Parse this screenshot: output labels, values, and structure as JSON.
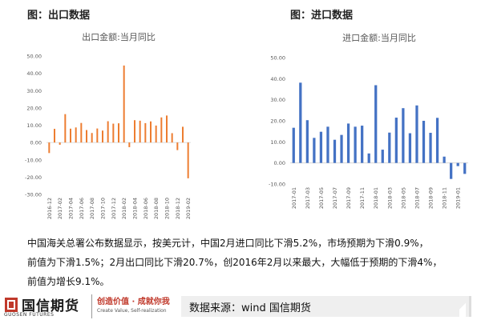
{
  "panels": {
    "left_title": "图：出口数据",
    "right_title": "图：进口数据"
  },
  "chart_data": [
    {
      "type": "bar",
      "title": "出口金额:当月同比",
      "color": "#ED7D31",
      "ylim": [
        -30,
        50
      ],
      "yticks": [
        "50.00",
        "40.00",
        "30.00",
        "20.00",
        "10.00",
        "0.00",
        "-10.00",
        "-20.00",
        "-30.00"
      ],
      "ytick_values": [
        50,
        40,
        30,
        20,
        10,
        0,
        -10,
        -20,
        -30
      ],
      "xtick_labels": [
        "2016-12",
        "2017-02",
        "2017-04",
        "2017-06",
        "2017-08",
        "2017-10",
        "2017-12",
        "2018-02",
        "2018-04",
        "2018-06",
        "2018-08",
        "2018-10",
        "2018-12",
        "2019-02"
      ],
      "categories": [
        "2016-12",
        "2017-01",
        "2017-02",
        "2017-03",
        "2017-04",
        "2017-05",
        "2017-06",
        "2017-07",
        "2017-08",
        "2017-09",
        "2017-10",
        "2017-11",
        "2017-12",
        "2018-01",
        "2018-02",
        "2018-03",
        "2018-04",
        "2018-05",
        "2018-06",
        "2018-07",
        "2018-08",
        "2018-09",
        "2018-10",
        "2018-11",
        "2018-12",
        "2019-01",
        "2019-02"
      ],
      "values": [
        -6.1,
        7.9,
        -1.3,
        16.4,
        8.0,
        8.7,
        11.3,
        7.2,
        5.5,
        8.1,
        6.9,
        12.3,
        10.9,
        11.1,
        44.5,
        -2.7,
        12.9,
        12.6,
        11.2,
        12.2,
        9.8,
        14.5,
        15.6,
        5.4,
        -4.4,
        9.1,
        -20.7
      ],
      "grid": false,
      "legend": "none"
    },
    {
      "type": "bar",
      "title": "进口金额:当月同比",
      "color": "#4472C4",
      "ylim": [
        -10,
        50
      ],
      "yticks": [
        "50.00",
        "40.00",
        "30.00",
        "20.00",
        "10.00",
        "0.00",
        "-10.00"
      ],
      "ytick_values": [
        50,
        40,
        30,
        20,
        10,
        0,
        -10
      ],
      "xtick_labels": [
        "2017-01",
        "2017-03",
        "2017-05",
        "2017-07",
        "2017-09",
        "2017-11",
        "2018-01",
        "2018-03",
        "2018-05",
        "2018-07",
        "2018-09",
        "2018-11",
        "2019-01"
      ],
      "categories": [
        "2017-01",
        "2017-02",
        "2017-03",
        "2017-04",
        "2017-05",
        "2017-06",
        "2017-07",
        "2017-08",
        "2017-09",
        "2017-10",
        "2017-11",
        "2017-12",
        "2018-01",
        "2018-02",
        "2018-03",
        "2018-04",
        "2018-05",
        "2018-06",
        "2018-07",
        "2018-08",
        "2018-09",
        "2018-10",
        "2018-11",
        "2018-12",
        "2019-01",
        "2019-02"
      ],
      "values": [
        16.7,
        38.1,
        20.3,
        11.9,
        14.8,
        17.2,
        11.0,
        13.3,
        18.7,
        17.2,
        17.7,
        4.5,
        36.9,
        6.3,
        14.4,
        21.5,
        26.0,
        14.1,
        27.3,
        20.0,
        14.3,
        21.4,
        3.0,
        -7.6,
        -1.5,
        -5.2
      ],
      "grid": false,
      "legend": "none"
    }
  ],
  "commentary": {
    "line1": "中国海关总署公布数据显示，按美元计，中国2月进口同比下滑5.2%，市场预期为下滑0.9%，",
    "line2": "前值为下滑1.5%；2月出口同比下滑20.7%，创2016年2月以来最大，大幅低于预期的下滑4%，",
    "line3": "前值为增长9.1%。"
  },
  "footer": {
    "logo_cn": "国信期货",
    "logo_en": "GUOSEN FUTURES",
    "slogan_cn": "创造价值 · 成就你我",
    "slogan_en": "Create Value, Self-realization",
    "source": "数据来源：wind 国信期货",
    "logo_color": "#C0392B"
  }
}
